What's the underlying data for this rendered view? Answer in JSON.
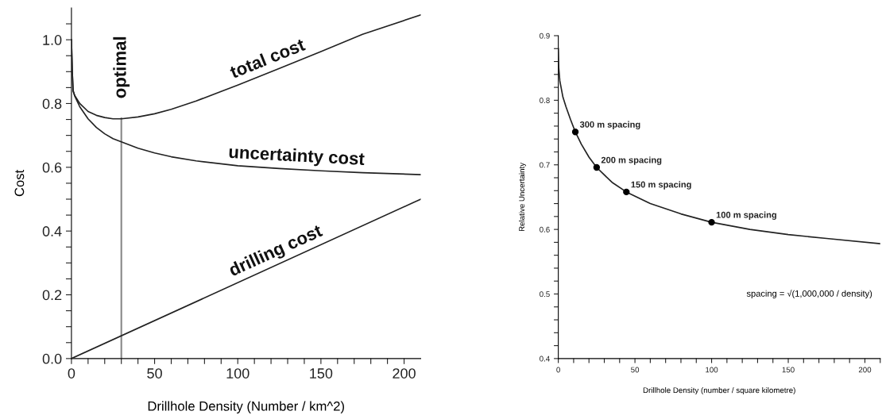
{
  "chart_data": [
    {
      "type": "line",
      "xlabel": "Drillhole Density (Number / km^2)",
      "ylabel": "Cost",
      "xlim": [
        0,
        210
      ],
      "ylim": [
        0,
        1.1
      ],
      "xticks": [
        0,
        {
          "value": 10,
          "label": null
        },
        {
          "value": 20,
          "label": null
        },
        {
          "value": 30,
          "label": null
        },
        {
          "value": 40,
          "label": null
        },
        50,
        {
          "value": 60,
          "label": null
        },
        {
          "value": 70,
          "label": null
        },
        {
          "value": 80,
          "label": null
        },
        {
          "value": 90,
          "label": null
        },
        100,
        {
          "value": 110,
          "label": null
        },
        {
          "value": 120,
          "label": null
        },
        {
          "value": 130,
          "label": null
        },
        {
          "value": 140,
          "label": null
        },
        150,
        {
          "value": 160,
          "label": null
        },
        {
          "value": 170,
          "label": null
        },
        {
          "value": 180,
          "label": null
        },
        {
          "value": 190,
          "label": null
        },
        200
      ],
      "yticks": [
        {
          "value": 0,
          "label": "0.0"
        },
        {
          "value": 0.05,
          "label": null
        },
        {
          "value": 0.1,
          "label": null
        },
        {
          "value": 0.15,
          "label": null
        },
        {
          "value": 0.2,
          "label": "0.2"
        },
        {
          "value": 0.25,
          "label": null
        },
        {
          "value": 0.3,
          "label": null
        },
        {
          "value": 0.35,
          "label": null
        },
        {
          "value": 0.4,
          "label": "0.4"
        },
        {
          "value": 0.45,
          "label": null
        },
        {
          "value": 0.5,
          "label": null
        },
        {
          "value": 0.55,
          "label": null
        },
        {
          "value": 0.6,
          "label": "0.6"
        },
        {
          "value": 0.65,
          "label": null
        },
        {
          "value": 0.7,
          "label": null
        },
        {
          "value": 0.75,
          "label": null
        },
        {
          "value": 0.8,
          "label": "0.8"
        },
        {
          "value": 0.85,
          "label": null
        },
        {
          "value": 0.9,
          "label": null
        },
        {
          "value": 0.95,
          "label": null
        },
        {
          "value": 1.0,
          "label": "1.0"
        },
        {
          "value": 1.05,
          "label": null
        }
      ],
      "grid": false,
      "marker": "none",
      "line_style": "solid",
      "series": [
        {
          "name": "total cost",
          "color": "#222222",
          "x": [
            0,
            0.5,
            1,
            2,
            5,
            10,
            15,
            20,
            25,
            30,
            40,
            50,
            60,
            75,
            90,
            100,
            125,
            150,
            175,
            210
          ],
          "values": [
            1.0,
            0.9,
            0.84,
            0.825,
            0.8,
            0.775,
            0.763,
            0.756,
            0.752,
            0.752,
            0.758,
            0.768,
            0.782,
            0.808,
            0.838,
            0.858,
            0.91,
            0.963,
            1.017,
            1.078
          ]
        },
        {
          "name": "uncertainty cost",
          "color": "#222222",
          "x": [
            0,
            0.5,
            1,
            2,
            5,
            10,
            15,
            20,
            25,
            30,
            40,
            50,
            60,
            75,
            100,
            125,
            150,
            175,
            210
          ],
          "values": [
            1.0,
            0.9,
            0.84,
            0.823,
            0.79,
            0.752,
            0.725,
            0.705,
            0.69,
            0.68,
            0.66,
            0.645,
            0.633,
            0.62,
            0.605,
            0.596,
            0.589,
            0.583,
            0.577
          ]
        },
        {
          "name": "drilling cost",
          "color": "#222222",
          "x": [
            0,
            210
          ],
          "values": [
            0,
            0.5
          ]
        }
      ],
      "ref_lines": [
        {
          "axis": "x",
          "value": 30,
          "label": "optimal",
          "color": "#888888"
        }
      ]
    },
    {
      "type": "line",
      "xlabel": "Drillhole Density (number / square kilometre)",
      "ylabel": "Relative Uncertainty",
      "xlim": [
        0,
        210
      ],
      "ylim": [
        0.4,
        0.9
      ],
      "xticks": [
        0,
        {
          "value": 10,
          "label": null
        },
        {
          "value": 20,
          "label": null
        },
        {
          "value": 30,
          "label": null
        },
        {
          "value": 40,
          "label": null
        },
        50,
        {
          "value": 60,
          "label": null
        },
        {
          "value": 70,
          "label": null
        },
        {
          "value": 80,
          "label": null
        },
        {
          "value": 90,
          "label": null
        },
        100,
        {
          "value": 110,
          "label": null
        },
        {
          "value": 120,
          "label": null
        },
        {
          "value": 130,
          "label": null
        },
        {
          "value": 140,
          "label": null
        },
        150,
        {
          "value": 160,
          "label": null
        },
        {
          "value": 170,
          "label": null
        },
        {
          "value": 180,
          "label": null
        },
        {
          "value": 190,
          "label": null
        },
        200,
        {
          "value": 210,
          "label": null
        }
      ],
      "yticks": [
        {
          "value": 0.4,
          "label": "0.4"
        },
        {
          "value": 0.42,
          "label": null
        },
        {
          "value": 0.44,
          "label": null
        },
        {
          "value": 0.46,
          "label": null
        },
        {
          "value": 0.48,
          "label": null
        },
        {
          "value": 0.5,
          "label": "0.5"
        },
        {
          "value": 0.52,
          "label": null
        },
        {
          "value": 0.54,
          "label": null
        },
        {
          "value": 0.56,
          "label": null
        },
        {
          "value": 0.58,
          "label": null
        },
        {
          "value": 0.6,
          "label": "0.6"
        },
        {
          "value": 0.62,
          "label": null
        },
        {
          "value": 0.64,
          "label": null
        },
        {
          "value": 0.66,
          "label": null
        },
        {
          "value": 0.68,
          "label": null
        },
        {
          "value": 0.7,
          "label": "0.7"
        },
        {
          "value": 0.72,
          "label": null
        },
        {
          "value": 0.74,
          "label": null
        },
        {
          "value": 0.76,
          "label": null
        },
        {
          "value": 0.78,
          "label": null
        },
        {
          "value": 0.8,
          "label": "0.8"
        },
        {
          "value": 0.82,
          "label": null
        },
        {
          "value": 0.84,
          "label": null
        },
        {
          "value": 0.86,
          "label": null
        },
        {
          "value": 0.88,
          "label": null
        },
        {
          "value": 0.9,
          "label": "0.9"
        }
      ],
      "grid": false,
      "line_style": "solid",
      "series": [
        {
          "type": "line",
          "color": "#222222",
          "marker": "none",
          "x": [
            0,
            0.3,
            1,
            3,
            5,
            8,
            11.1,
            15,
            20,
            25,
            35,
            44.4,
            60,
            80,
            100,
            125,
            150,
            175,
            210
          ],
          "values": [
            0.88,
            0.85,
            0.83,
            0.805,
            0.79,
            0.77,
            0.751,
            0.732,
            0.712,
            0.696,
            0.673,
            0.658,
            0.64,
            0.624,
            0.611,
            0.6,
            0.592,
            0.586,
            0.578
          ]
        },
        {
          "type": "scatter",
          "color": "#000000",
          "marker": "circle",
          "x": [
            11.1,
            25,
            44.4,
            100
          ],
          "values": [
            0.751,
            0.696,
            0.658,
            0.611
          ]
        }
      ],
      "annotations": [
        {
          "text": "300 m spacing",
          "x": 11.1,
          "y": 0.751
        },
        {
          "text": "200 m spacing",
          "x": 25,
          "y": 0.696
        },
        {
          "text": "150 m spacing",
          "x": 44.4,
          "y": 0.658
        },
        {
          "text": "100 m spacing",
          "x": 100,
          "y": 0.611
        },
        "spacing = √(1,000,000 / density)"
      ]
    }
  ]
}
